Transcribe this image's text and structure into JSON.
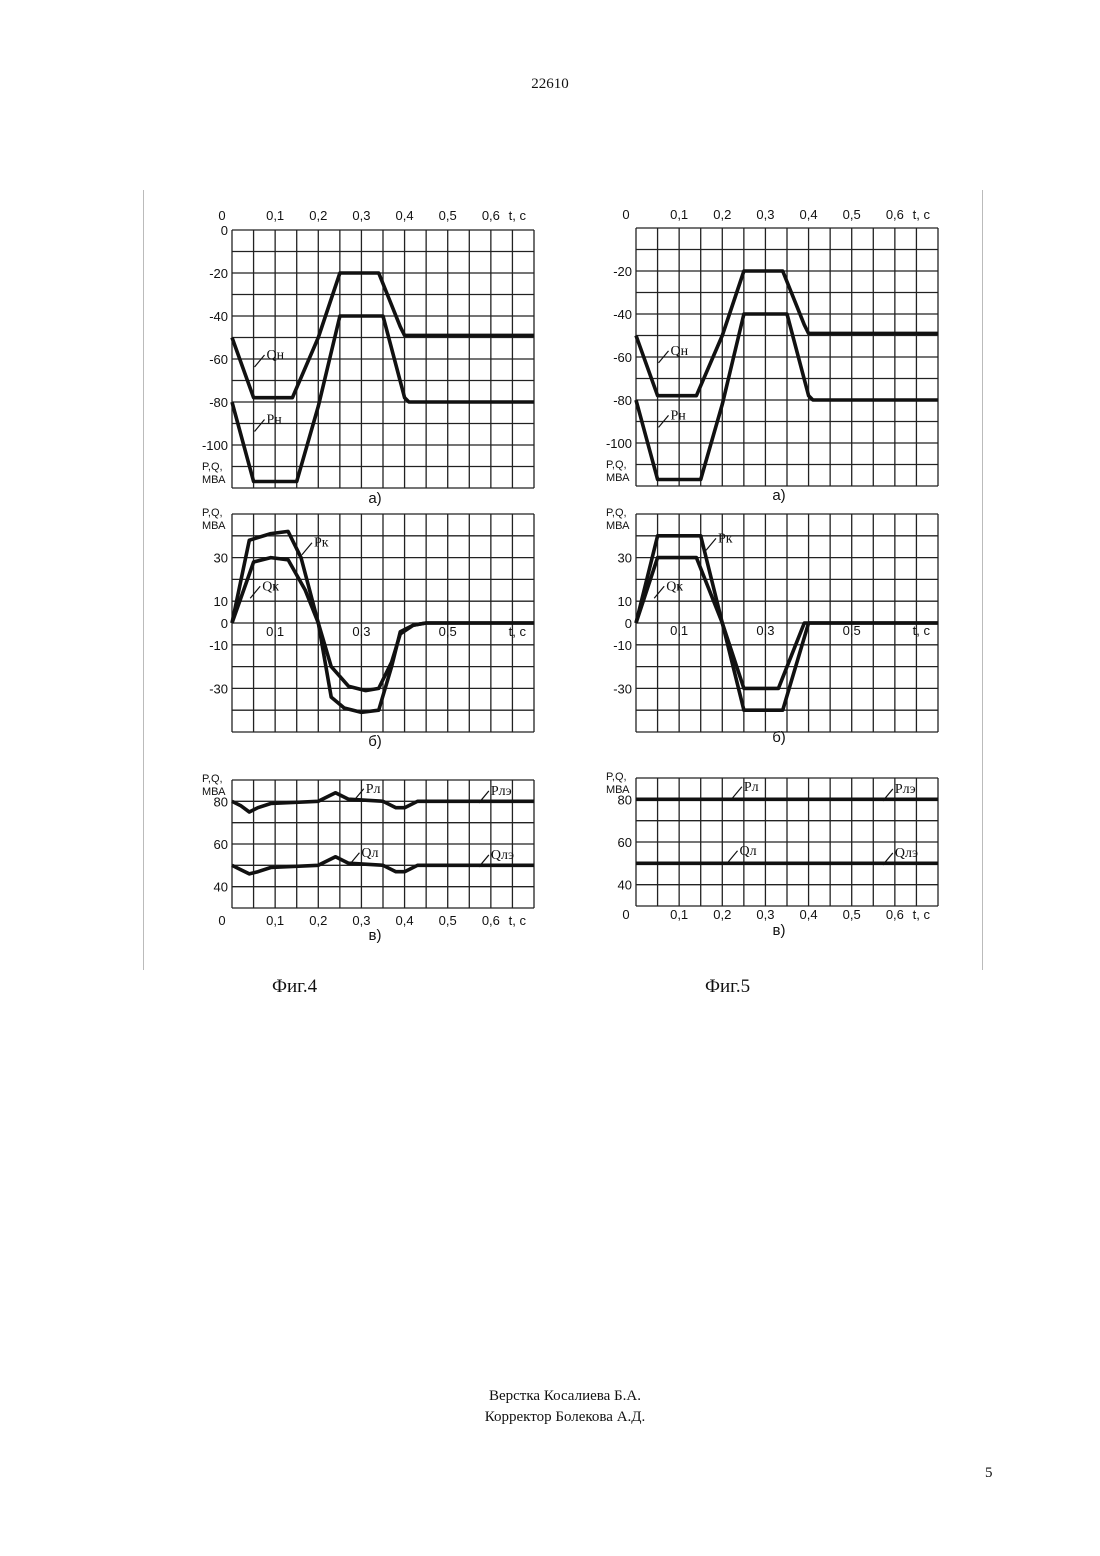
{
  "page": {
    "header_number": "22610",
    "footer_page": "5",
    "credits": [
      "Верстка Косалиева Б.А.",
      "Корректор Болекова А.Д."
    ]
  },
  "figures": [
    {
      "caption": "Фиг.4"
    },
    {
      "caption": "Фиг.5"
    }
  ],
  "chart_data": [
    {
      "figure": "Фиг.4",
      "panel": "а)",
      "type": "line",
      "ylabel": "P,Q, МВА",
      "xlabel": "t, с",
      "xlim": [
        0,
        0.7
      ],
      "ylim": [
        -120,
        0
      ],
      "xticks": [
        "0",
        "0,1",
        "0,2",
        "0,3",
        "0,4",
        "0,5",
        "0,6"
      ],
      "yticks": [
        "0",
        "-20",
        "-40",
        "-60",
        "-80",
        "-100"
      ],
      "grid": true,
      "series": [
        {
          "name": "Qн",
          "points": [
            [
              0,
              -50
            ],
            [
              0.05,
              -78
            ],
            [
              0.14,
              -78
            ],
            [
              0.2,
              -50
            ],
            [
              0.25,
              -20
            ],
            [
              0.34,
              -20
            ],
            [
              0.39,
              -45
            ],
            [
              0.4,
              -49
            ],
            [
              0.7,
              -49
            ]
          ]
        },
        {
          "name": "Pн",
          "points": [
            [
              0,
              -80
            ],
            [
              0.05,
              -117
            ],
            [
              0.15,
              -117
            ],
            [
              0.2,
              -82
            ],
            [
              0.25,
              -40
            ],
            [
              0.35,
              -40
            ],
            [
              0.4,
              -78
            ],
            [
              0.41,
              -80
            ],
            [
              0.7,
              -80
            ]
          ]
        }
      ]
    },
    {
      "figure": "Фиг.4",
      "panel": "б)",
      "type": "line",
      "ylabel": "P,Q, МВА",
      "xlabel": "t, с",
      "xlim": [
        0,
        0.7
      ],
      "ylim": [
        -50,
        50
      ],
      "xticks": [
        "0,1",
        "0,3",
        "0,5"
      ],
      "yticks": [
        "30",
        "10",
        "0",
        "-10",
        "-30"
      ],
      "grid": true,
      "series": [
        {
          "name": "Pк",
          "points": [
            [
              0,
              0
            ],
            [
              0.04,
              38
            ],
            [
              0.09,
              41
            ],
            [
              0.13,
              42
            ],
            [
              0.16,
              30
            ],
            [
              0.2,
              0
            ],
            [
              0.23,
              -34
            ],
            [
              0.26,
              -39
            ],
            [
              0.3,
              -41
            ],
            [
              0.34,
              -40
            ],
            [
              0.37,
              -20
            ],
            [
              0.39,
              -4
            ],
            [
              0.42,
              -1
            ],
            [
              0.45,
              0
            ],
            [
              0.7,
              0
            ]
          ]
        },
        {
          "name": "Qк",
          "points": [
            [
              0,
              0
            ],
            [
              0.05,
              28
            ],
            [
              0.09,
              30
            ],
            [
              0.13,
              29
            ],
            [
              0.17,
              15
            ],
            [
              0.2,
              0
            ],
            [
              0.23,
              -20
            ],
            [
              0.27,
              -29
            ],
            [
              0.31,
              -31
            ],
            [
              0.34,
              -30
            ],
            [
              0.37,
              -18
            ],
            [
              0.39,
              -5
            ],
            [
              0.42,
              -1
            ],
            [
              0.45,
              0
            ],
            [
              0.7,
              0
            ]
          ]
        }
      ]
    },
    {
      "figure": "Фиг.4",
      "panel": "в)",
      "type": "line",
      "ylabel": "P,Q, МВА",
      "xlabel": "t, с",
      "xlim": [
        0,
        0.7
      ],
      "ylim": [
        30,
        90
      ],
      "xticks": [
        "0",
        "0,1",
        "0,2",
        "0,3",
        "0,4",
        "0,5",
        "0,6"
      ],
      "yticks": [
        "80",
        "60",
        "40"
      ],
      "grid": true,
      "series": [
        {
          "name": "Pл",
          "points": [
            [
              0,
              80
            ],
            [
              0.02,
              78
            ],
            [
              0.04,
              75
            ],
            [
              0.06,
              77
            ],
            [
              0.09,
              79
            ],
            [
              0.2,
              80
            ],
            [
              0.24,
              84
            ],
            [
              0.27,
              81
            ],
            [
              0.35,
              80
            ],
            [
              0.38,
              77
            ],
            [
              0.4,
              77
            ],
            [
              0.43,
              80
            ],
            [
              0.7,
              80
            ]
          ]
        },
        {
          "name": "Qл",
          "points": [
            [
              0,
              50
            ],
            [
              0.02,
              48
            ],
            [
              0.04,
              46
            ],
            [
              0.06,
              47
            ],
            [
              0.09,
              49
            ],
            [
              0.2,
              50
            ],
            [
              0.24,
              54
            ],
            [
              0.27,
              51
            ],
            [
              0.35,
              50
            ],
            [
              0.38,
              47
            ],
            [
              0.4,
              47
            ],
            [
              0.43,
              50
            ],
            [
              0.7,
              50
            ]
          ]
        }
      ],
      "annotations": [
        "Pлэ",
        "Qлэ"
      ]
    },
    {
      "figure": "Фиг.5",
      "panel": "а)",
      "type": "line",
      "ylabel": "P,Q, МВА",
      "xlabel": "t, с",
      "xlim": [
        0,
        0.7
      ],
      "ylim": [
        -120,
        0
      ],
      "xticks": [
        "0",
        "0,1",
        "0,2",
        "0,3",
        "0,4",
        "0,5",
        "0,6"
      ],
      "yticks": [
        "-20",
        "-40",
        "-60",
        "-80",
        "-100"
      ],
      "grid": true,
      "series": [
        {
          "name": "Qн",
          "points": [
            [
              0,
              -50
            ],
            [
              0.05,
              -78
            ],
            [
              0.14,
              -78
            ],
            [
              0.2,
              -50
            ],
            [
              0.25,
              -20
            ],
            [
              0.34,
              -20
            ],
            [
              0.39,
              -45
            ],
            [
              0.4,
              -49
            ],
            [
              0.7,
              -49
            ]
          ]
        },
        {
          "name": "Pн",
          "points": [
            [
              0,
              -80
            ],
            [
              0.05,
              -117
            ],
            [
              0.15,
              -117
            ],
            [
              0.2,
              -82
            ],
            [
              0.25,
              -40
            ],
            [
              0.35,
              -40
            ],
            [
              0.4,
              -78
            ],
            [
              0.41,
              -80
            ],
            [
              0.7,
              -80
            ]
          ]
        }
      ]
    },
    {
      "figure": "Фиг.5",
      "panel": "б)",
      "type": "line",
      "ylabel": "P,Q, МВА",
      "xlabel": "t, с",
      "xlim": [
        0,
        0.7
      ],
      "ylim": [
        -50,
        50
      ],
      "xticks": [
        "0,1",
        "0,3",
        "0,5"
      ],
      "yticks": [
        "30",
        "10",
        "0",
        "-10",
        "-30"
      ],
      "grid": true,
      "series": [
        {
          "name": "Pк",
          "points": [
            [
              0,
              0
            ],
            [
              0.05,
              40
            ],
            [
              0.15,
              40
            ],
            [
              0.2,
              0
            ],
            [
              0.25,
              -40
            ],
            [
              0.34,
              -40
            ],
            [
              0.4,
              0
            ],
            [
              0.7,
              0
            ]
          ]
        },
        {
          "name": "Qк",
          "points": [
            [
              0,
              0
            ],
            [
              0.05,
              30
            ],
            [
              0.14,
              30
            ],
            [
              0.2,
              0
            ],
            [
              0.25,
              -30
            ],
            [
              0.33,
              -30
            ],
            [
              0.39,
              0
            ],
            [
              0.7,
              0
            ]
          ]
        }
      ]
    },
    {
      "figure": "Фиг.5",
      "panel": "в)",
      "type": "line",
      "ylabel": "P,Q, МВА",
      "xlabel": "t, с",
      "xlim": [
        0,
        0.7
      ],
      "ylim": [
        30,
        90
      ],
      "xticks": [
        "0",
        "0,1",
        "0,2",
        "0,3",
        "0,4",
        "0,5",
        "0,6"
      ],
      "yticks": [
        "80",
        "60",
        "40"
      ],
      "grid": true,
      "series": [
        {
          "name": "Pл",
          "points": [
            [
              0,
              80
            ],
            [
              0.7,
              80
            ]
          ]
        },
        {
          "name": "Qл",
          "points": [
            [
              0,
              50
            ],
            [
              0.7,
              50
            ]
          ]
        }
      ],
      "annotations": [
        "Pлэ",
        "Qлэ"
      ]
    }
  ]
}
